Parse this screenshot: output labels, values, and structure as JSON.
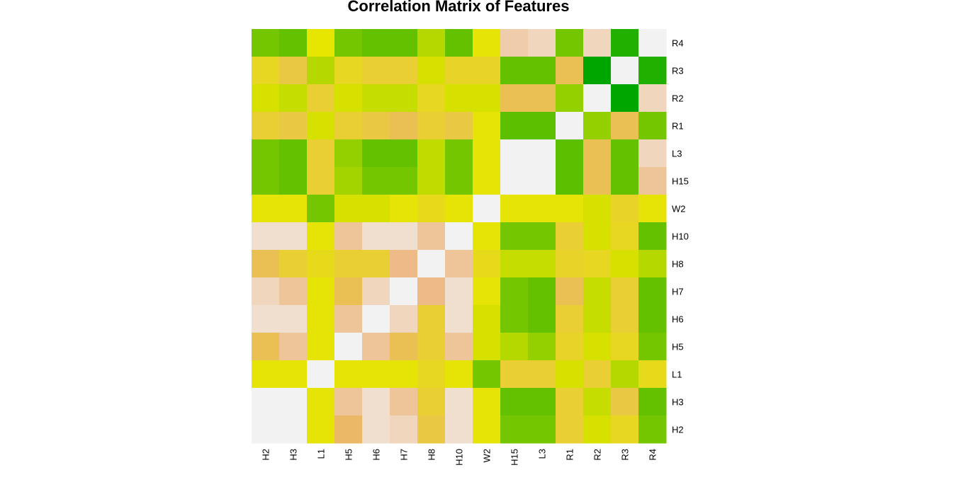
{
  "chart_data": {
    "type": "heatmap",
    "title": "Correlation Matrix of Features",
    "xlabel": "",
    "ylabel": "",
    "x_labels": [
      "H2",
      "H3",
      "L1",
      "H5",
      "H6",
      "H7",
      "H8",
      "H10",
      "W2",
      "H15",
      "L3",
      "R1",
      "R2",
      "R3",
      "R4"
    ],
    "y_labels_top_to_bottom": [
      "R4",
      "R3",
      "R2",
      "R1",
      "L3",
      "H15",
      "W2",
      "H10",
      "H8",
      "H7",
      "H6",
      "H5",
      "L1",
      "H3",
      "H2"
    ],
    "color_scale": {
      "low": "#00a600",
      "mid": "#e6e600",
      "high": "#f2f2f2",
      "scale_range": [
        -0.4,
        1.0
      ],
      "colormap": "terrain.colors"
    },
    "values": [
      [
        -0.05,
        -0.1,
        0.3,
        -0.05,
        -0.1,
        -0.1,
        0.15,
        -0.1,
        0.32,
        0.8,
        0.85,
        -0.05,
        0.85,
        -0.3,
        1.0
      ],
      [
        0.4,
        0.5,
        0.15,
        0.4,
        0.45,
        0.45,
        0.25,
        0.42,
        0.42,
        -0.1,
        -0.1,
        0.55,
        -0.4,
        1.0,
        -0.3
      ],
      [
        0.25,
        0.2,
        0.45,
        0.25,
        0.2,
        0.2,
        0.4,
        0.25,
        0.25,
        0.55,
        0.55,
        0.05,
        1.0,
        -0.4,
        0.85
      ],
      [
        0.45,
        0.5,
        0.25,
        0.45,
        0.5,
        0.55,
        0.45,
        0.5,
        0.32,
        -0.12,
        -0.12,
        1.0,
        0.05,
        0.55,
        -0.05
      ],
      [
        -0.05,
        -0.1,
        0.45,
        0.05,
        -0.1,
        -0.1,
        0.18,
        -0.05,
        0.32,
        1.0,
        1.0,
        -0.12,
        0.55,
        -0.1,
        0.85
      ],
      [
        -0.05,
        -0.1,
        0.45,
        0.1,
        -0.05,
        -0.05,
        0.18,
        -0.05,
        0.32,
        1.0,
        1.0,
        -0.12,
        0.55,
        -0.1,
        0.75
      ],
      [
        0.32,
        0.32,
        -0.05,
        0.25,
        0.25,
        0.32,
        0.38,
        0.32,
        1.0,
        0.32,
        0.32,
        0.32,
        0.25,
        0.42,
        0.32
      ],
      [
        0.9,
        0.9,
        0.32,
        0.75,
        0.9,
        0.9,
        0.75,
        1.0,
        0.32,
        -0.05,
        -0.05,
        0.45,
        0.25,
        0.4,
        -0.1
      ],
      [
        0.55,
        0.45,
        0.38,
        0.45,
        0.45,
        0.7,
        1.0,
        0.75,
        0.38,
        0.2,
        0.2,
        0.42,
        0.4,
        0.25,
        0.15
      ],
      [
        0.85,
        0.75,
        0.32,
        0.55,
        0.85,
        1.0,
        0.7,
        0.9,
        0.32,
        -0.05,
        -0.1,
        0.55,
        0.2,
        0.45,
        -0.1
      ],
      [
        0.9,
        0.9,
        0.32,
        0.75,
        1.0,
        0.85,
        0.45,
        0.9,
        0.25,
        -0.05,
        -0.1,
        0.45,
        0.2,
        0.45,
        -0.1
      ],
      [
        0.55,
        0.75,
        0.32,
        1.0,
        0.75,
        0.55,
        0.45,
        0.75,
        0.25,
        0.15,
        0.05,
        0.42,
        0.25,
        0.4,
        -0.05
      ],
      [
        0.32,
        0.32,
        1.0,
        0.32,
        0.32,
        0.32,
        0.4,
        0.32,
        -0.05,
        0.45,
        0.45,
        0.25,
        0.45,
        0.15,
        0.38
      ],
      [
        1.0,
        1.0,
        0.32,
        0.75,
        0.9,
        0.75,
        0.45,
        0.9,
        0.32,
        -0.1,
        -0.1,
        0.45,
        0.2,
        0.5,
        -0.1
      ],
      [
        1.0,
        1.0,
        0.32,
        0.6,
        0.9,
        0.85,
        0.5,
        0.9,
        0.32,
        -0.05,
        -0.05,
        0.45,
        0.25,
        0.4,
        -0.05
      ]
    ],
    "grid": false,
    "legend": "none"
  }
}
